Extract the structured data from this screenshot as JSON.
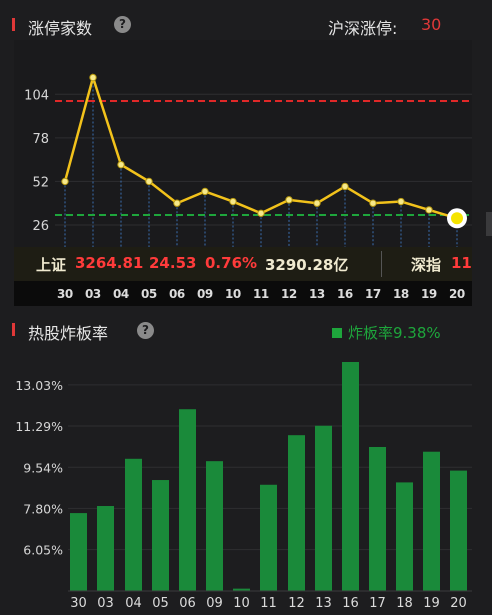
{
  "limit_up_section": {
    "title": "涨停家数",
    "help_icon": "question-circle-icon",
    "total_label": "沪深涨停:",
    "total_value": "30",
    "chart_data": {
      "type": "line",
      "x": [
        "30",
        "03",
        "04",
        "05",
        "06",
        "09",
        "10",
        "11",
        "12",
        "13",
        "16",
        "17",
        "18",
        "19",
        "20"
      ],
      "values": [
        52,
        114,
        62,
        52,
        39,
        46,
        40,
        33,
        41,
        39,
        49,
        39,
        40,
        35,
        30
      ],
      "ytick_labels": [
        "104",
        "78",
        "52",
        "26"
      ],
      "ylim": [
        14,
        130
      ],
      "reference_lines": [
        {
          "value": 100,
          "color": "#e02828"
        },
        {
          "value": 32,
          "color": "#1ea63c"
        }
      ],
      "line_color": "#f2c21b",
      "grid": true
    }
  },
  "ticker": {
    "sh_label": "上证",
    "sh_index": "3264.81",
    "sh_change": "24.53",
    "sh_percent": "0.76%",
    "sh_amount": "3290.28亿",
    "sz_label": "深指",
    "sz_partial": "11"
  },
  "date_bar": [
    "30",
    "03",
    "04",
    "05",
    "06",
    "09",
    "10",
    "11",
    "12",
    "13",
    "16",
    "17",
    "18",
    "19",
    "20"
  ],
  "break_section": {
    "title": "热股炸板率",
    "help_icon": "question-circle-icon",
    "legend_label": "炸板率9.38%",
    "legend_color": "#1ea63c",
    "chart_data": {
      "type": "bar",
      "categories": [
        "30",
        "03",
        "04",
        "05",
        "06",
        "09",
        "10",
        "11",
        "12",
        "13",
        "16",
        "17",
        "18",
        "19",
        "20"
      ],
      "values": [
        7.6,
        7.9,
        9.9,
        9.0,
        12.0,
        9.8,
        4.4,
        8.8,
        10.9,
        11.3,
        14.0,
        10.4,
        8.9,
        10.2,
        9.4
      ],
      "ytick_labels": [
        "13.03%",
        "11.29%",
        "9.54%",
        "7.80%",
        "6.05%"
      ],
      "ylim": [
        4.3,
        14.77
      ],
      "bar_color": "#1a8a3a",
      "grid": true
    }
  }
}
